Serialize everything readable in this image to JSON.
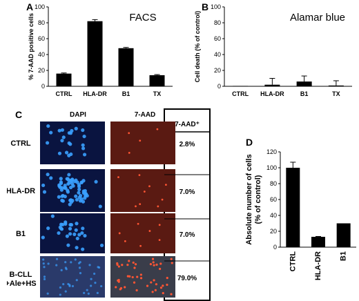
{
  "colors": {
    "bar": "#000000",
    "dapi_bg": "#0a1440",
    "dapi_cell": "#3aa0ff",
    "aad_bg": "#5a1a12",
    "aad_cell": "#ff5533",
    "merged_bg": "#3a3d4a"
  },
  "panels": {
    "A": {
      "letter": "A"
    },
    "B": {
      "letter": "B"
    },
    "C": {
      "letter": "C"
    },
    "D": {
      "letter": "D"
    }
  },
  "micrograph": {
    "col_dapi": "DAPI",
    "col_aad": "7-AAD",
    "col_table": "7-AAD⁺",
    "rows": [
      {
        "label": "CTRL",
        "label2": "",
        "pct": "2.8%"
      },
      {
        "label": "HLA-DR",
        "label2": "",
        "pct": "7.0%"
      },
      {
        "label": "B1",
        "label2": "",
        "pct": "7.0%"
      },
      {
        "label": "B-CLL",
        "label2": "+Ale+HS",
        "pct": "79.0%"
      }
    ]
  },
  "chart_data": [
    {
      "panel": "A",
      "type": "bar",
      "title": "FACS",
      "ylabel": "% 7-AAD positive cells",
      "categories": [
        "CTRL",
        "HLA-DR",
        "B1",
        "TX"
      ],
      "values": [
        16,
        82,
        48,
        14
      ],
      "errors": [
        0.8,
        2.0,
        1.0,
        0.8
      ],
      "ylim": [
        0,
        100
      ],
      "yticks": [
        0,
        20,
        40,
        60,
        80,
        100
      ]
    },
    {
      "panel": "B",
      "type": "bar",
      "title": "Alamar blue",
      "ylabel": "Cell death (% of control)",
      "categories": [
        "CTRL",
        "HLA-DR",
        "B1",
        "TX"
      ],
      "values": [
        0.5,
        2,
        6,
        1
      ],
      "errors": [
        0,
        8,
        7,
        6
      ],
      "ylim": [
        0,
        100
      ],
      "yticks": [
        0,
        20,
        40,
        60,
        80,
        100
      ]
    },
    {
      "panel": "D",
      "type": "bar",
      "title": "",
      "ylabel": "Absolute number of cells (% of control)",
      "ylabel_lines": [
        "Absolute number of cells",
        "(% of control)"
      ],
      "categories": [
        "CTRL",
        "HLA-DR",
        "B1"
      ],
      "values": [
        100,
        13,
        30
      ],
      "errors": [
        7,
        0.5,
        0
      ],
      "ylim": [
        0,
        120
      ],
      "yticks": [
        0,
        20,
        40,
        60,
        80,
        100,
        120
      ]
    }
  ]
}
